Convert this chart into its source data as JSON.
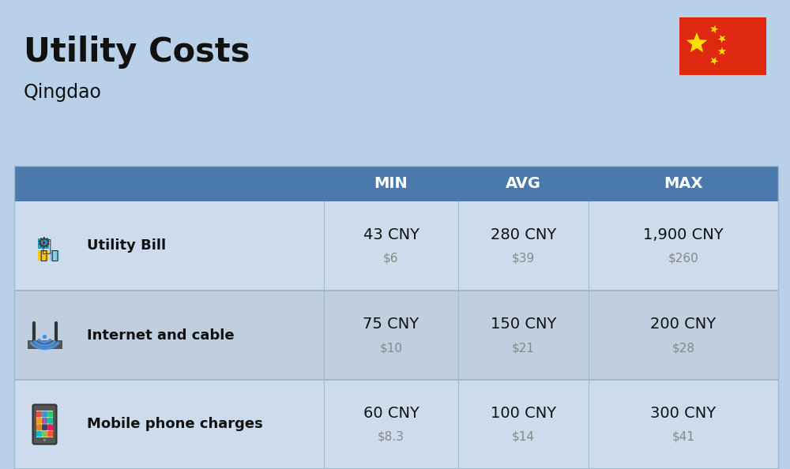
{
  "title": "Utility Costs",
  "subtitle": "Qingdao",
  "background_color": "#b8d0e8",
  "header_color": "#4a7aab",
  "header_text_color": "#ffffff",
  "row_color_odd": "#ccdcec",
  "row_color_even": "#bfcfdf",
  "row_divider_color": "#a0b8cc",
  "headers": [
    "MIN",
    "AVG",
    "MAX"
  ],
  "rows": [
    {
      "label": "Utility Bill",
      "min_cny": "43 CNY",
      "min_usd": "$6",
      "avg_cny": "280 CNY",
      "avg_usd": "$39",
      "max_cny": "1,900 CNY",
      "max_usd": "$260",
      "icon": "utility"
    },
    {
      "label": "Internet and cable",
      "min_cny": "75 CNY",
      "min_usd": "$10",
      "avg_cny": "150 CNY",
      "avg_usd": "$21",
      "max_cny": "200 CNY",
      "max_usd": "$28",
      "icon": "internet"
    },
    {
      "label": "Mobile phone charges",
      "min_cny": "60 CNY",
      "min_usd": "$8.3",
      "avg_cny": "100 CNY",
      "avg_usd": "$14",
      "max_cny": "300 CNY",
      "max_usd": "$41",
      "icon": "mobile"
    }
  ],
  "flag_red": "#DE2910",
  "flag_yellow": "#FFDE00",
  "title_fontsize": 30,
  "subtitle_fontsize": 17,
  "header_fontsize": 14,
  "label_fontsize": 13,
  "cny_fontsize": 14,
  "usd_fontsize": 11
}
